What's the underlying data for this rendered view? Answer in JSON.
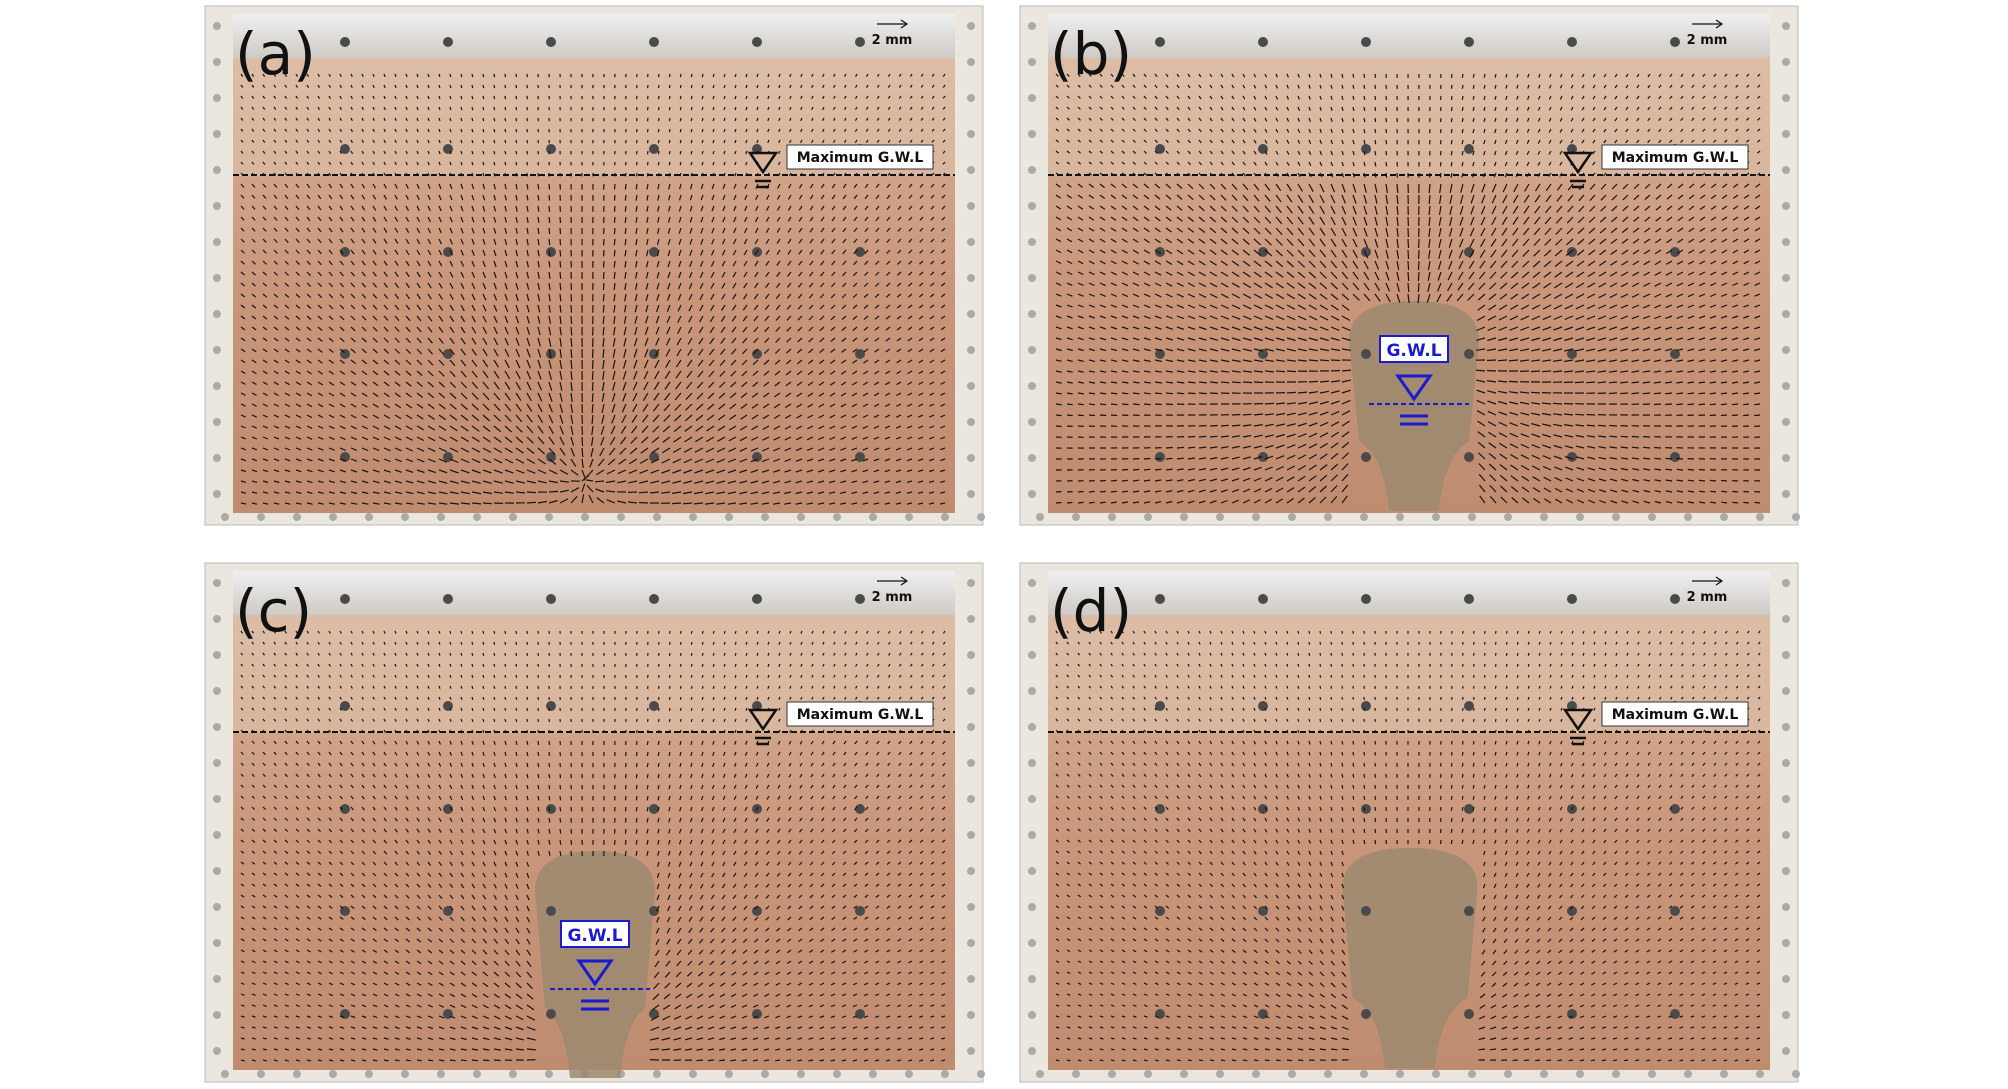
{
  "panels": [
    {
      "label": "(a)",
      "scale": "2 mm",
      "max_gwl": "Maximum G.W.L"
    },
    {
      "label": "(b)",
      "scale": "2 mm",
      "max_gwl": "Maximum G.W.L",
      "gwl": "G.W.L"
    },
    {
      "label": "(c)",
      "scale": "2 mm",
      "max_gwl": "Maximum G.W.L",
      "gwl": "G.W.L"
    },
    {
      "label": "(d)",
      "scale": "2 mm",
      "max_gwl": "Maximum G.W.L"
    }
  ]
}
